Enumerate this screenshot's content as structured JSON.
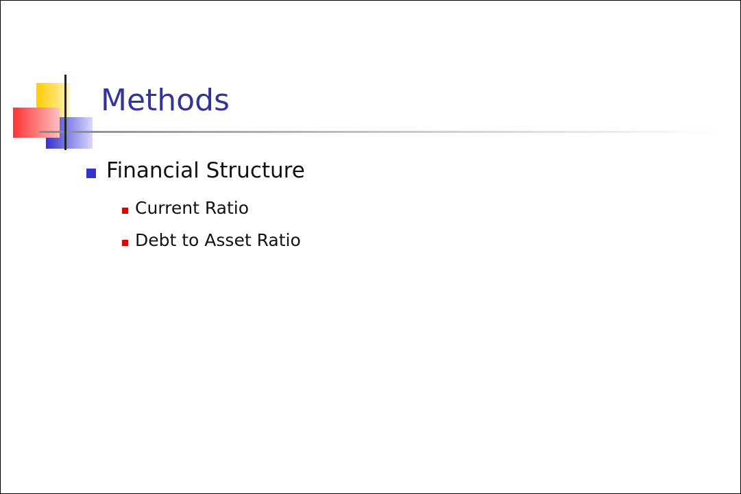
{
  "slide": {
    "title": "Methods",
    "bullets": [
      {
        "text": "Financial Structure",
        "sub": [
          "Current Ratio",
          "Debt to Asset Ratio"
        ]
      }
    ]
  }
}
